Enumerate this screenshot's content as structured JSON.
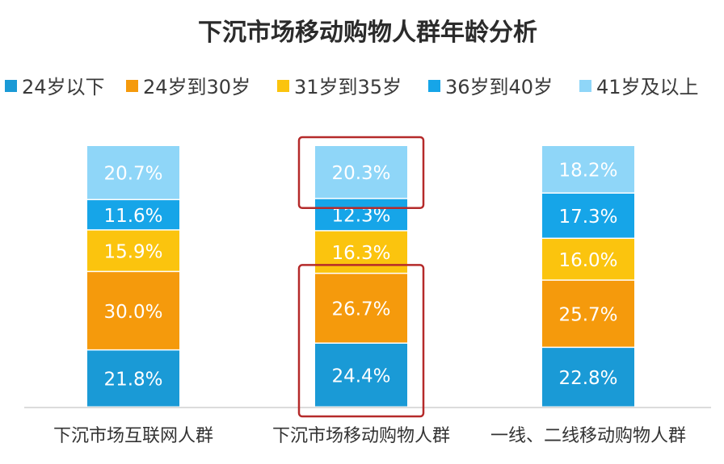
{
  "chart_data": {
    "type": "bar",
    "stacked": true,
    "title": "下沉市场移动购物人群年龄分析",
    "categories": [
      "下沉市场互联网人群",
      "下沉市场移动购物人群",
      "一线、二线移动购物人群"
    ],
    "series": [
      {
        "name": "24岁以下",
        "color": "#1a9ad6",
        "values": [
          21.8,
          24.4,
          22.8
        ],
        "labels": [
          "21.8%",
          "24.4%",
          "22.8%"
        ]
      },
      {
        "name": "24岁到30岁",
        "color": "#f59a0c",
        "values": [
          30.0,
          26.7,
          25.7
        ],
        "labels": [
          "30.0%",
          "26.7%",
          "25.7%"
        ]
      },
      {
        "name": "31岁到35岁",
        "color": "#fbc40e",
        "values": [
          15.9,
          16.3,
          16.0
        ],
        "labels": [
          "15.9%",
          "16.3%",
          "16.0%"
        ]
      },
      {
        "name": "36岁到40岁",
        "color": "#16a5e8",
        "values": [
          11.6,
          12.3,
          17.3
        ],
        "labels": [
          "11.6%",
          "12.3%",
          "17.3%"
        ]
      },
      {
        "name": "41岁及以上",
        "color": "#8fd6f8",
        "values": [
          20.7,
          20.3,
          18.2
        ],
        "labels": [
          "20.7%",
          "20.3%",
          "18.2%"
        ]
      }
    ],
    "ylim": [
      0,
      100
    ],
    "legend_position": "top",
    "grid": false,
    "highlight_boxes": [
      {
        "category_index": 1,
        "series_indices": [
          4
        ]
      },
      {
        "category_index": 1,
        "series_indices": [
          0,
          1
        ]
      }
    ],
    "highlight_color": "#b52a2a"
  }
}
